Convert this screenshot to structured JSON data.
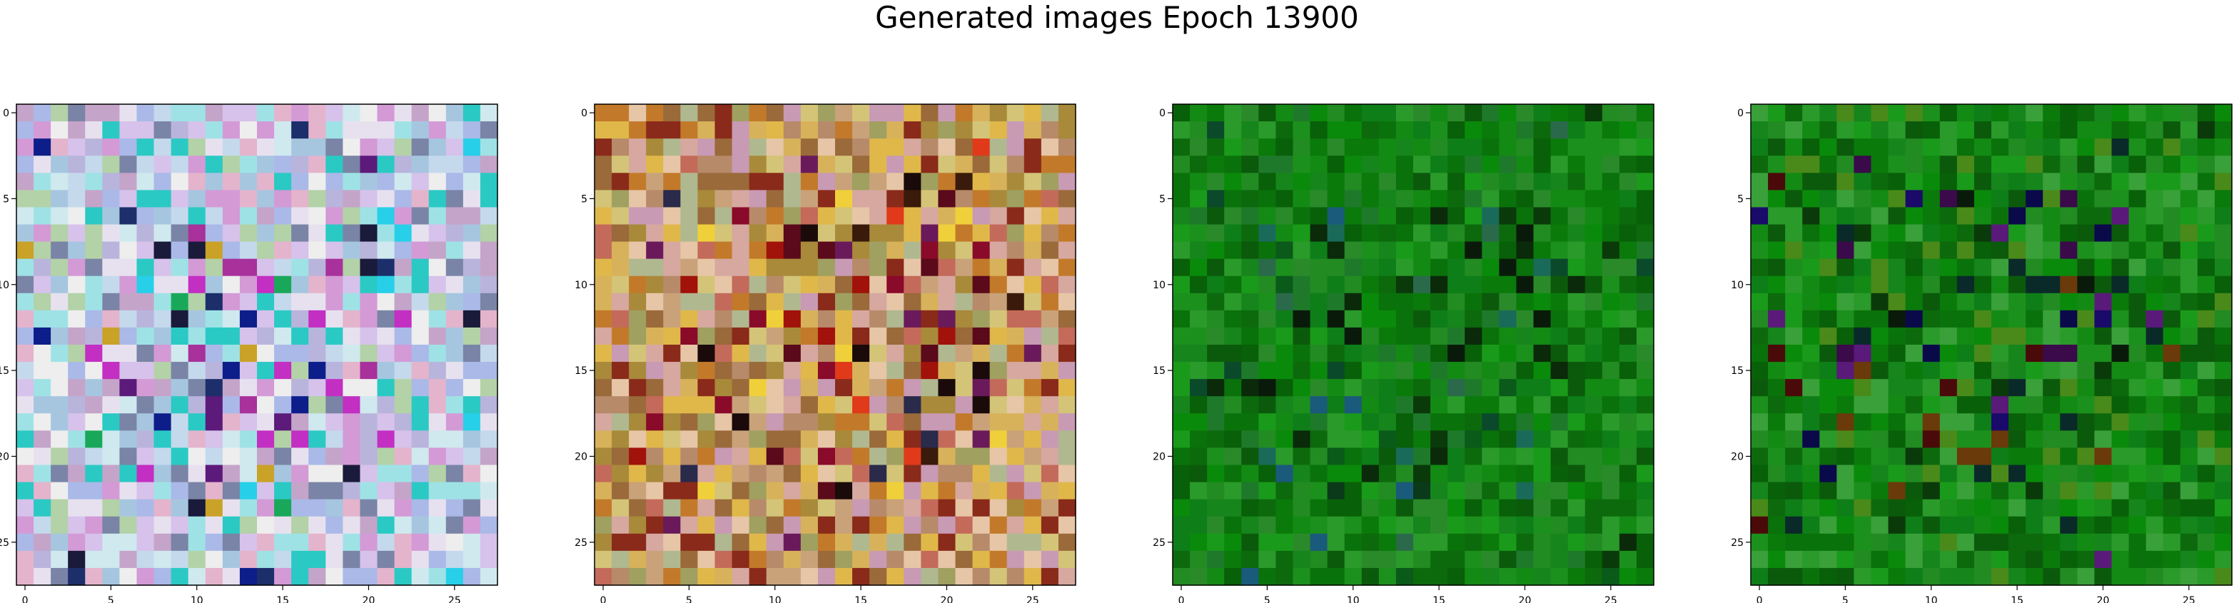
{
  "figure": {
    "title": "Generated images Epoch 13900"
  },
  "chart_data": {
    "type": "heatmap",
    "title": "Generated images Epoch 13900",
    "grid": false,
    "panels": [
      {
        "name": "",
        "xlim": [
          -0.5,
          27.5
        ],
        "ylim": [
          27.5,
          -0.5
        ],
        "xticks": [
          0,
          5,
          10,
          15,
          20,
          25
        ],
        "yticks": [
          0,
          5,
          10,
          15,
          20,
          25
        ],
        "palette": [
          "#d6c2ea",
          "#c4d9ec",
          "#e7e1ef",
          "#b9b4dc",
          "#e4b4cc",
          "#cfe9ef",
          "#a6c6e0",
          "#d39ad6",
          "#9fe2e6",
          "#eeeeee",
          "#c5a4c9",
          "#b3d2a7",
          "#aab9e8",
          "#7a84a6",
          "#2bc9c4"
        ],
        "accents": [
          "#1a1a3a",
          "#0d1e8a",
          "#5c1a7a",
          "#c22fc2",
          "#19a85a",
          "#c9a227",
          "#1c2f6a",
          "#27d0e8",
          "#a8319b"
        ]
      },
      {
        "name": "",
        "xlim": [
          -0.5,
          27.5
        ],
        "ylim": [
          27.5,
          -0.5
        ],
        "xticks": [
          0,
          5,
          10,
          15,
          20,
          25
        ],
        "yticks": [
          0,
          5,
          10,
          15,
          20,
          25
        ],
        "palette": [
          "#c9a27a",
          "#d8b25a",
          "#a88a3a",
          "#d6a8a0",
          "#c46a5a",
          "#b78a6a",
          "#e0b84a",
          "#a0a060",
          "#c89ab4",
          "#9a6a3a",
          "#d4c478",
          "#b0b890",
          "#8a2a1a",
          "#e6c6a6",
          "#c27a2a"
        ],
        "accents": [
          "#1a0a0a",
          "#5a0a1a",
          "#a0120a",
          "#e03a1a",
          "#6a1a5a",
          "#3a1a0a",
          "#f0d03a",
          "#8a0a2a",
          "#2a2a4a"
        ]
      },
      {
        "name": "",
        "xlim": [
          -0.5,
          27.5
        ],
        "ylim": [
          27.5,
          -0.5
        ],
        "xticks": [
          0,
          5,
          10,
          15,
          20,
          25
        ],
        "yticks": [
          0,
          5,
          10,
          15,
          20,
          25
        ],
        "palette": [
          "#0a7a0a",
          "#138a14",
          "#0c6a0c",
          "#1a9a1a",
          "#086008",
          "#228b22",
          "#0e7e18",
          "#16851c",
          "#2a8a2a",
          "#0a720a",
          "#1c901c",
          "#0b5a0b",
          "#1e7a2a",
          "#0a8a0a",
          "#2a9a2a"
        ],
        "accents": [
          "#0a2a0a",
          "#0a3a1a",
          "#0a4a2a",
          "#1a6a5a",
          "#0a1a0a",
          "#1a5a7a",
          "#0a3a0a",
          "#2a6a4a",
          "#0a5a1a"
        ]
      },
      {
        "name": "",
        "xlim": [
          -0.5,
          27.5
        ],
        "ylim": [
          27.5,
          -0.5
        ],
        "xticks": [
          0,
          5,
          10,
          15,
          20,
          25
        ],
        "yticks": [
          0,
          5,
          10,
          15,
          20,
          25
        ],
        "palette": [
          "#0a7a0a",
          "#138a14",
          "#0c6a0c",
          "#1a9a1a",
          "#086008",
          "#228b22",
          "#0e7e18",
          "#16851c",
          "#3aa03a",
          "#0a720a",
          "#1c901c",
          "#0b5a0b",
          "#4a8a1a",
          "#0a8a0a",
          "#2a9a2a"
        ],
        "accents": [
          "#0a1a0a",
          "#0a0a4a",
          "#3a0a4a",
          "#4a0a0a",
          "#0a3a0a",
          "#1a0a6a",
          "#5a1a7a",
          "#6a3a0a",
          "#0a2a2a"
        ]
      }
    ]
  }
}
